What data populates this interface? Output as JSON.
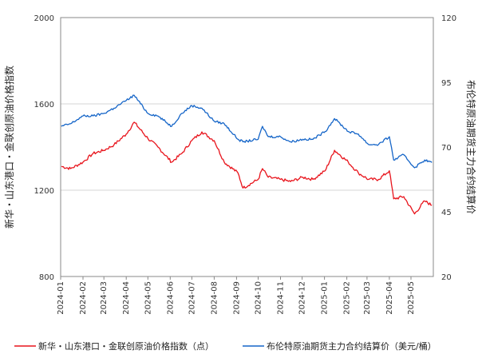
{
  "chart_data": {
    "type": "line",
    "ylabel_left": "新华・山东港口・金联创原油价格指数",
    "ylabel_right": "布伦特原油期货主力合约结算价",
    "y_left": {
      "lim": [
        800,
        2000
      ],
      "ticks": [
        "800",
        "1200",
        "1600",
        "2000"
      ]
    },
    "y_right": {
      "lim": [
        20,
        120
      ],
      "ticks": [
        "20",
        "45",
        "70",
        "95",
        "120"
      ]
    },
    "x_ticks": [
      "2024-01",
      "2024-02",
      "2024-03",
      "2024-04",
      "2024-05",
      "2024-06",
      "2024-07",
      "2024-08",
      "2024-09",
      "2024-10",
      "2024-11",
      "2024-12",
      "2025-01",
      "2025-02",
      "2025-03",
      "2025-04",
      "2025-05"
    ],
    "grid": "horizontal",
    "legend_position": "bottom",
    "series": [
      {
        "name": "新华・山东港口・金联创原油价格指数（点）",
        "color": "#e8131b",
        "axis": "left",
        "x": [
          "2024-01-02",
          "2024-01-15",
          "2024-02-01",
          "2024-02-15",
          "2024-03-01",
          "2024-03-15",
          "2024-04-01",
          "2024-04-12",
          "2024-05-01",
          "2024-05-15",
          "2024-06-03",
          "2024-06-17",
          "2024-07-01",
          "2024-07-15",
          "2024-08-01",
          "2024-08-15",
          "2024-09-03",
          "2024-09-10",
          "2024-10-01",
          "2024-10-07",
          "2024-10-15",
          "2024-11-01",
          "2024-11-15",
          "2024-12-02",
          "2024-12-16",
          "2025-01-02",
          "2025-01-15",
          "2025-02-03",
          "2025-02-17",
          "2025-03-03",
          "2025-03-17",
          "2025-04-01",
          "2025-04-07",
          "2025-04-21",
          "2025-05-06",
          "2025-05-20",
          "2025-05-30"
        ],
        "values": [
          1310,
          1300,
          1330,
          1370,
          1385,
          1410,
          1460,
          1515,
          1440,
          1400,
          1330,
          1370,
          1430,
          1470,
          1430,
          1330,
          1280,
          1210,
          1250,
          1300,
          1260,
          1250,
          1240,
          1260,
          1250,
          1290,
          1385,
          1330,
          1280,
          1250,
          1250,
          1290,
          1160,
          1170,
          1090,
          1150,
          1130
        ]
      },
      {
        "name": "布伦特原油期货主力合约结算价（美元/桶）",
        "color": "#1565c8",
        "axis": "right",
        "x": [
          "2024-01-02",
          "2024-01-15",
          "2024-02-01",
          "2024-02-15",
          "2024-03-01",
          "2024-03-15",
          "2024-04-01",
          "2024-04-12",
          "2024-05-01",
          "2024-05-15",
          "2024-06-03",
          "2024-06-17",
          "2024-07-01",
          "2024-07-15",
          "2024-08-01",
          "2024-08-15",
          "2024-09-03",
          "2024-09-10",
          "2024-10-01",
          "2024-10-07",
          "2024-10-15",
          "2024-11-01",
          "2024-11-15",
          "2024-12-02",
          "2024-12-16",
          "2025-01-02",
          "2025-01-15",
          "2025-02-03",
          "2025-02-17",
          "2025-03-03",
          "2025-03-17",
          "2025-04-01",
          "2025-04-07",
          "2025-04-21",
          "2025-05-06",
          "2025-05-20",
          "2025-05-30"
        ],
        "values": [
          78,
          79,
          82,
          82,
          83,
          85,
          88,
          90,
          83,
          82,
          78,
          83,
          86,
          85,
          80,
          79,
          73,
          72,
          73,
          78,
          74,
          74,
          72,
          73,
          73,
          76,
          81,
          76,
          75,
          71,
          71,
          74,
          65,
          67,
          62,
          65,
          64
        ]
      }
    ]
  }
}
